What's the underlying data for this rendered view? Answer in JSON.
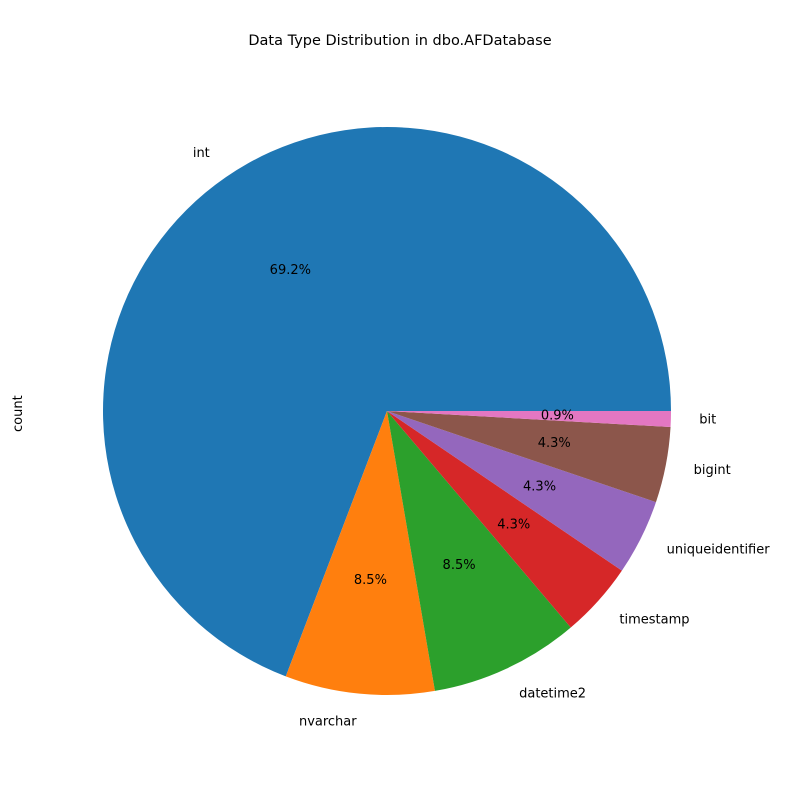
{
  "chart_data": {
    "type": "pie",
    "title": "Data Type Distribution in dbo.AFDatabase",
    "ylabel": "count",
    "slices": [
      {
        "label": "int",
        "percent": 69.2,
        "percent_label": "69.2%",
        "color": "#1f77b4"
      },
      {
        "label": "nvarchar",
        "percent": 8.5,
        "percent_label": "8.5%",
        "color": "#ff7f0e"
      },
      {
        "label": "datetime2",
        "percent": 8.5,
        "percent_label": "8.5%",
        "color": "#2ca02c"
      },
      {
        "label": "timestamp",
        "percent": 4.3,
        "percent_label": "4.3%",
        "color": "#d62728"
      },
      {
        "label": "uniqueidentifier",
        "percent": 4.3,
        "percent_label": "4.3%",
        "color": "#9467bd"
      },
      {
        "label": "bigint",
        "percent": 4.3,
        "percent_label": "4.3%",
        "color": "#8c564b"
      },
      {
        "label": "bit",
        "percent": 0.9,
        "percent_label": "0.9%",
        "color": "#e377c2"
      }
    ]
  }
}
